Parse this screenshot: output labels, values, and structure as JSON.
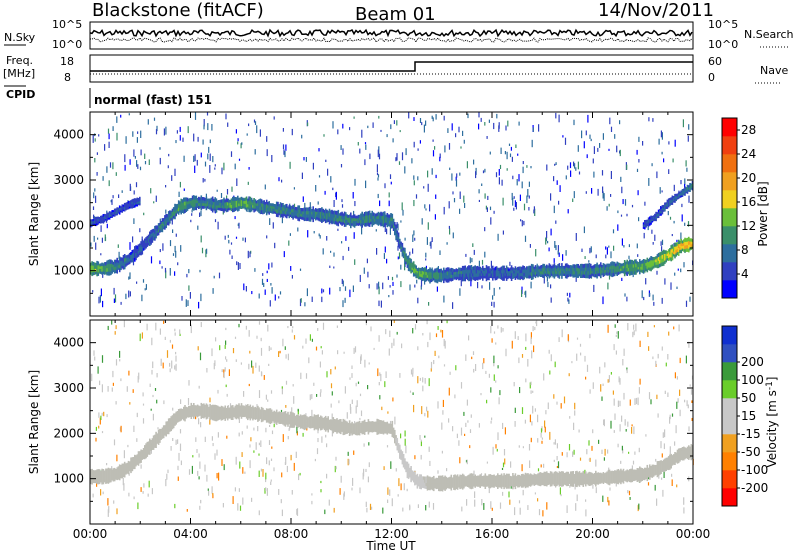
{
  "header": {
    "station": "Blackstone (fitACF)",
    "beam": "Beam 01",
    "date": "14/Nov/2011"
  },
  "colors": {
    "scale": [
      "#0000ff",
      "#3040c0",
      "#2d6e9e",
      "#3a8f6a",
      "#6abf3a",
      "#f0d020",
      "#f0a020",
      "#f07010",
      "#f04010",
      "#ff0000"
    ],
    "velocity_scale": [
      "#ff0000",
      "#ff4000",
      "#ff8000",
      "#f0a020",
      "#c8c8c8",
      "#c8c8c8",
      "#6acd2a",
      "#3a9a3a",
      "#3050c0",
      "#1030d0"
    ],
    "ground_scatter": "#bdbdb5"
  },
  "top_panels": {
    "nsky_label": "N.Sky",
    "nsky_ticks": [
      "10^5",
      "10^0"
    ],
    "nsearch_label": "N.Search",
    "nsearch_ticks": [
      "10^5",
      "10^0"
    ],
    "freq_label": "Freq.",
    "freq_unit": "[MHz]",
    "freq_ticks": [
      "18",
      "8"
    ],
    "nave_label": "Nave",
    "nave_ticks": [
      "60",
      "0"
    ],
    "cpid_label": "CPID",
    "cpid_value": "normal (fast) 151"
  },
  "chart_data": [
    {
      "type": "heatmap",
      "panel": "power",
      "xlabel": "Time UT",
      "ylabel": "Slant Range [km]",
      "x_ticks": [
        "00:00",
        "04:00",
        "08:00",
        "12:00",
        "16:00",
        "20:00",
        "00:00"
      ],
      "x_hours": [
        0,
        4,
        8,
        12,
        16,
        20,
        24
      ],
      "y_ticks": [
        1000,
        2000,
        3000,
        4000
      ],
      "ylim": [
        0,
        4500
      ],
      "colorbar_label": "Power [dB]",
      "colorbar_ticks": [
        4,
        8,
        12,
        16,
        20,
        24,
        28
      ],
      "colorbar_range": [
        0,
        30
      ],
      "bands": [
        {
          "hours": [
            0,
            0.5,
            1,
            1.5,
            2,
            2.5,
            3,
            3.5,
            4,
            4.5,
            5,
            5.5,
            6,
            6.5,
            7,
            7.5,
            8,
            8.5,
            9,
            9.5,
            10,
            10.5,
            11,
            11.5,
            12,
            12.3,
            12.6,
            13,
            13.5,
            14,
            15,
            16,
            17,
            18,
            19,
            20,
            21,
            22,
            22.5,
            23,
            23.5,
            24
          ],
          "range": [
            1050,
            1050,
            1100,
            1250,
            1500,
            1800,
            2100,
            2400,
            2500,
            2500,
            2450,
            2450,
            2500,
            2450,
            2400,
            2350,
            2300,
            2250,
            2250,
            2200,
            2150,
            2100,
            2150,
            2150,
            2100,
            1600,
            1200,
            950,
            900,
            900,
            950,
            950,
            950,
            1000,
            1000,
            1000,
            1050,
            1100,
            1200,
            1350,
            1550,
            1600
          ],
          "power": [
            16,
            14,
            10,
            8,
            6,
            8,
            10,
            12,
            12,
            10,
            10,
            12,
            14,
            12,
            10,
            10,
            10,
            10,
            10,
            10,
            10,
            10,
            10,
            10,
            10,
            8,
            12,
            14,
            12,
            10,
            8,
            8,
            8,
            10,
            10,
            10,
            12,
            14,
            16,
            18,
            20,
            22
          ]
        },
        {
          "hours": [
            0,
            0.5,
            1,
            1.5,
            2
          ],
          "range": [
            2050,
            2150,
            2300,
            2450,
            2550
          ],
          "power": [
            6,
            6,
            6,
            6,
            6
          ]
        },
        {
          "hours": [
            22,
            22.5,
            23,
            23.5,
            24
          ],
          "range": [
            2000,
            2200,
            2500,
            2700,
            2900
          ],
          "power": [
            6,
            6,
            8,
            8,
            10
          ]
        }
      ]
    },
    {
      "type": "heatmap",
      "panel": "velocity",
      "xlabel": "Time UT",
      "ylabel": "Slant Range [km]",
      "x_ticks": [
        "00:00",
        "04:00",
        "08:00",
        "12:00",
        "16:00",
        "20:00",
        "00:00"
      ],
      "x_hours": [
        0,
        4,
        8,
        12,
        16,
        20,
        24
      ],
      "y_ticks": [
        1000,
        2000,
        3000,
        4000
      ],
      "ylim": [
        0,
        4500
      ],
      "colorbar_label": "Velocity [m s^-1]",
      "colorbar_ticks": [
        -200,
        -100,
        -50,
        -15,
        15,
        50,
        100,
        200
      ],
      "colorbar_range": [
        -250,
        250
      ],
      "bands": [
        {
          "hours": [
            0,
            0.5,
            1,
            1.5,
            2,
            2.5,
            3,
            3.5,
            4,
            4.5,
            5,
            5.5,
            6,
            6.5,
            7,
            7.5,
            8,
            8.5,
            9,
            9.5,
            10,
            10.5,
            11,
            11.5,
            12,
            12.3,
            12.6,
            13,
            13.5,
            14,
            15,
            16,
            17,
            18,
            19,
            20,
            21,
            22,
            22.5,
            23,
            23.5,
            24
          ],
          "range": [
            1050,
            1050,
            1100,
            1250,
            1500,
            1800,
            2100,
            2400,
            2500,
            2500,
            2450,
            2450,
            2500,
            2450,
            2400,
            2350,
            2300,
            2250,
            2250,
            2200,
            2150,
            2100,
            2150,
            2150,
            2100,
            1600,
            1200,
            950,
            900,
            900,
            950,
            950,
            950,
            1000,
            1000,
            1000,
            1050,
            1100,
            1200,
            1350,
            1550,
            1600
          ],
          "velocity": [
            0,
            0,
            0,
            0,
            0,
            0,
            0,
            0,
            0,
            0,
            0,
            0,
            0,
            0,
            0,
            0,
            0,
            0,
            0,
            0,
            0,
            0,
            0,
            0,
            0,
            40,
            40,
            40,
            0,
            0,
            0,
            0,
            0,
            0,
            0,
            0,
            0,
            0,
            0,
            0,
            0,
            0
          ]
        }
      ]
    }
  ]
}
